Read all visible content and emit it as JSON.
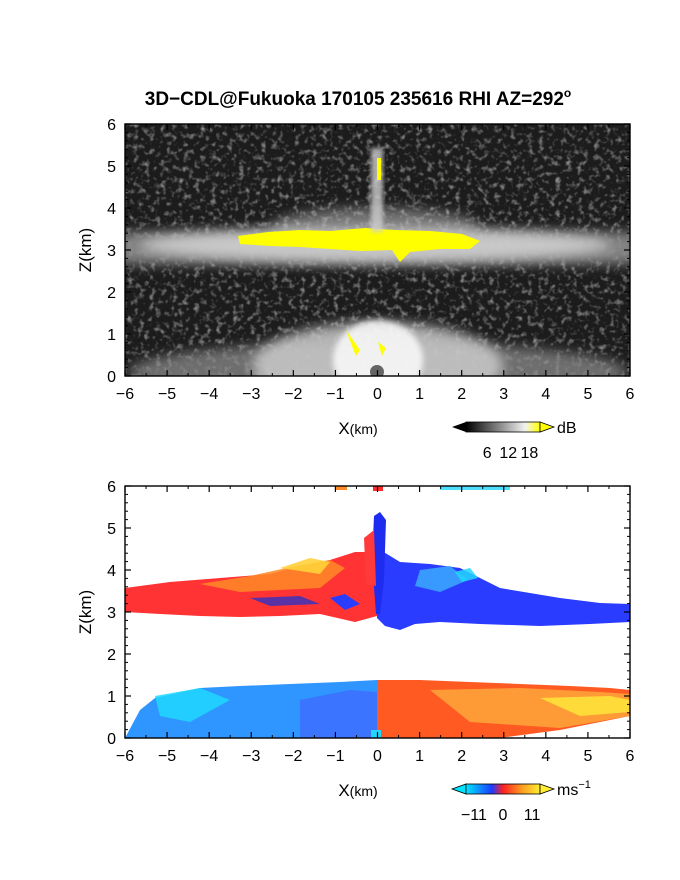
{
  "figure": {
    "title": "3D−CDL@Fukuoka 170105 235616 RHI AZ=292",
    "title_superscript": "o"
  },
  "chart_data": [
    {
      "type": "heatmap",
      "name": "reflectivity",
      "xlabel_main": "X",
      "xlabel_unit": "(km)",
      "ylabel_main": "Z",
      "ylabel_unit": "(km)",
      "xlim": [
        -6,
        6
      ],
      "ylim": [
        0,
        6
      ],
      "xticks": [
        "−6",
        "−5",
        "−4",
        "−3",
        "−2",
        "−1",
        "0",
        "1",
        "2",
        "3",
        "4",
        "5",
        "6"
      ],
      "yticks": [
        "0",
        "1",
        "2",
        "3",
        "4",
        "5",
        "6"
      ],
      "colorbar": {
        "unit": "dB",
        "ticks": [
          "6",
          "12",
          "18"
        ],
        "tick_values": [
          6,
          12,
          18
        ],
        "range": [
          0,
          21
        ],
        "colors": [
          "#000000",
          "#ffffff",
          "#ffff00"
        ]
      },
      "layers": [
        {
          "feature": "echo layer",
          "z_range": [
            2.7,
            3.7
          ],
          "x_range": [
            -6,
            6
          ]
        },
        {
          "feature": "high-intensity band",
          "z_range": [
            3.0,
            3.45
          ],
          "x_range": [
            -3.2,
            2.2
          ],
          "value": 18
        },
        {
          "feature": "near-surface fan",
          "z_range": [
            0,
            1.2
          ],
          "x_range": [
            -6,
            6
          ]
        },
        {
          "feature": "vertical plume",
          "z_range": [
            3.4,
            5.4
          ],
          "x_range": [
            -0.1,
            0.15
          ]
        }
      ]
    },
    {
      "type": "heatmap",
      "name": "doppler velocity",
      "xlabel_main": "X",
      "xlabel_unit": "(km)",
      "ylabel_main": "Z",
      "ylabel_unit": "(km)",
      "xlim": [
        -6,
        6
      ],
      "ylim": [
        0,
        6
      ],
      "xticks": [
        "−6",
        "−5",
        "−4",
        "−3",
        "−2",
        "−1",
        "0",
        "1",
        "2",
        "3",
        "4",
        "5",
        "6"
      ],
      "yticks": [
        "0",
        "1",
        "2",
        "3",
        "4",
        "5",
        "6"
      ],
      "colorbar": {
        "unit_main": "ms",
        "unit_exp": "−1",
        "ticks": [
          "−11",
          "0",
          "11"
        ],
        "tick_values": [
          -11,
          0,
          11
        ],
        "range": [
          -14,
          14
        ],
        "colors": [
          "#00e5ff",
          "#1a3cff",
          "#ff2020",
          "#ff9a20",
          "#ffee33"
        ]
      },
      "layers": [
        {
          "feature": "upper layer (x<0)",
          "z_range": [
            2.8,
            3.9
          ],
          "x_range": [
            -6,
            0
          ],
          "velocity": 8
        },
        {
          "feature": "upper layer (x>0)",
          "z_range": [
            2.6,
            3.9
          ],
          "x_range": [
            0,
            6
          ],
          "velocity": -8
        },
        {
          "feature": "lower layer (x<0)",
          "z_range": [
            0,
            1.2
          ],
          "x_range": [
            -5.5,
            0
          ],
          "velocity": -8
        },
        {
          "feature": "lower layer (x>0)",
          "z_range": [
            0,
            1.2
          ],
          "x_range": [
            0,
            6
          ],
          "velocity": 8
        },
        {
          "feature": "vertical plume",
          "z_range": [
            3.3,
            5.4
          ],
          "x_range": [
            -0.2,
            0.2
          ]
        }
      ]
    }
  ]
}
